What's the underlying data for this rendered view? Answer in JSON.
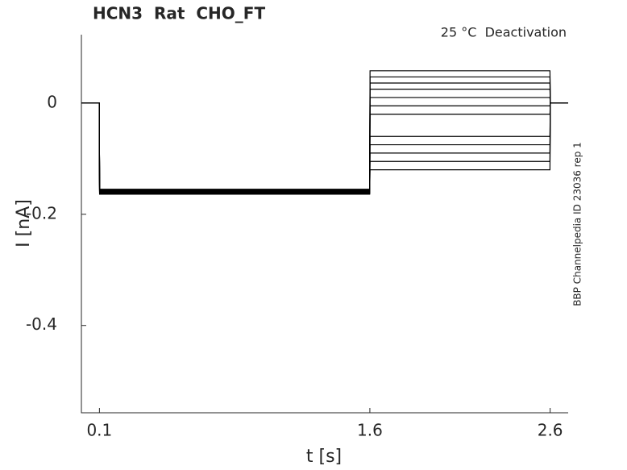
{
  "chart_data": {
    "type": "line",
    "title": "HCN3  Rat  CHO_FT",
    "annotation": "25 °C  Deactivation",
    "side_note": "BBP Channelpedia ID 23036 rep 1",
    "x_label": "t [s]",
    "y_label": "I [nA]",
    "x": [
      0,
      0.099,
      0.101,
      1.599,
      1.601,
      2.599,
      2.601,
      2.7
    ],
    "series": [
      {
        "color": "#000000",
        "values": [
          0,
          0,
          -0.155,
          -0.155,
          0.058,
          0.058,
          0,
          0
        ]
      },
      {
        "color": "#000000",
        "values": [
          0,
          0,
          -0.158,
          -0.158,
          0.047,
          0.047,
          0,
          0
        ]
      },
      {
        "color": "#000000",
        "values": [
          0,
          0,
          -0.16,
          -0.16,
          0.036,
          0.036,
          0,
          0
        ]
      },
      {
        "color": "#000000",
        "values": [
          0,
          0,
          -0.157,
          -0.157,
          0.025,
          0.025,
          0,
          0
        ]
      },
      {
        "color": "#000000",
        "values": [
          0,
          0,
          -0.162,
          -0.162,
          0.01,
          0.01,
          0,
          0
        ]
      },
      {
        "color": "#000000",
        "values": [
          0,
          0,
          -0.159,
          -0.159,
          -0.005,
          -0.005,
          0,
          0
        ]
      },
      {
        "color": "#000000",
        "values": [
          0,
          0,
          -0.163,
          -0.163,
          -0.02,
          -0.02,
          0,
          0
        ]
      },
      {
        "color": "#000000",
        "values": [
          0,
          0,
          -0.156,
          -0.156,
          -0.06,
          -0.06,
          0,
          0
        ]
      },
      {
        "color": "#000000",
        "values": [
          0,
          0,
          -0.161,
          -0.161,
          -0.075,
          -0.075,
          0,
          0
        ]
      },
      {
        "color": "#000000",
        "values": [
          0,
          0,
          -0.158,
          -0.158,
          -0.09,
          -0.09,
          0,
          0
        ]
      },
      {
        "color": "#000000",
        "values": [
          0,
          0,
          -0.164,
          -0.164,
          -0.105,
          -0.105,
          0,
          0
        ]
      },
      {
        "color": "#000000",
        "values": [
          0,
          0,
          -0.16,
          -0.16,
          -0.12,
          -0.12,
          0,
          0
        ]
      }
    ],
    "xlim": [
      0,
      2.7
    ],
    "ylim": [
      -0.557,
      0.123
    ],
    "xticks": [
      0.1,
      1.6,
      2.6
    ],
    "yticks": [
      0,
      -0.2,
      -0.4
    ],
    "grid": false
  }
}
